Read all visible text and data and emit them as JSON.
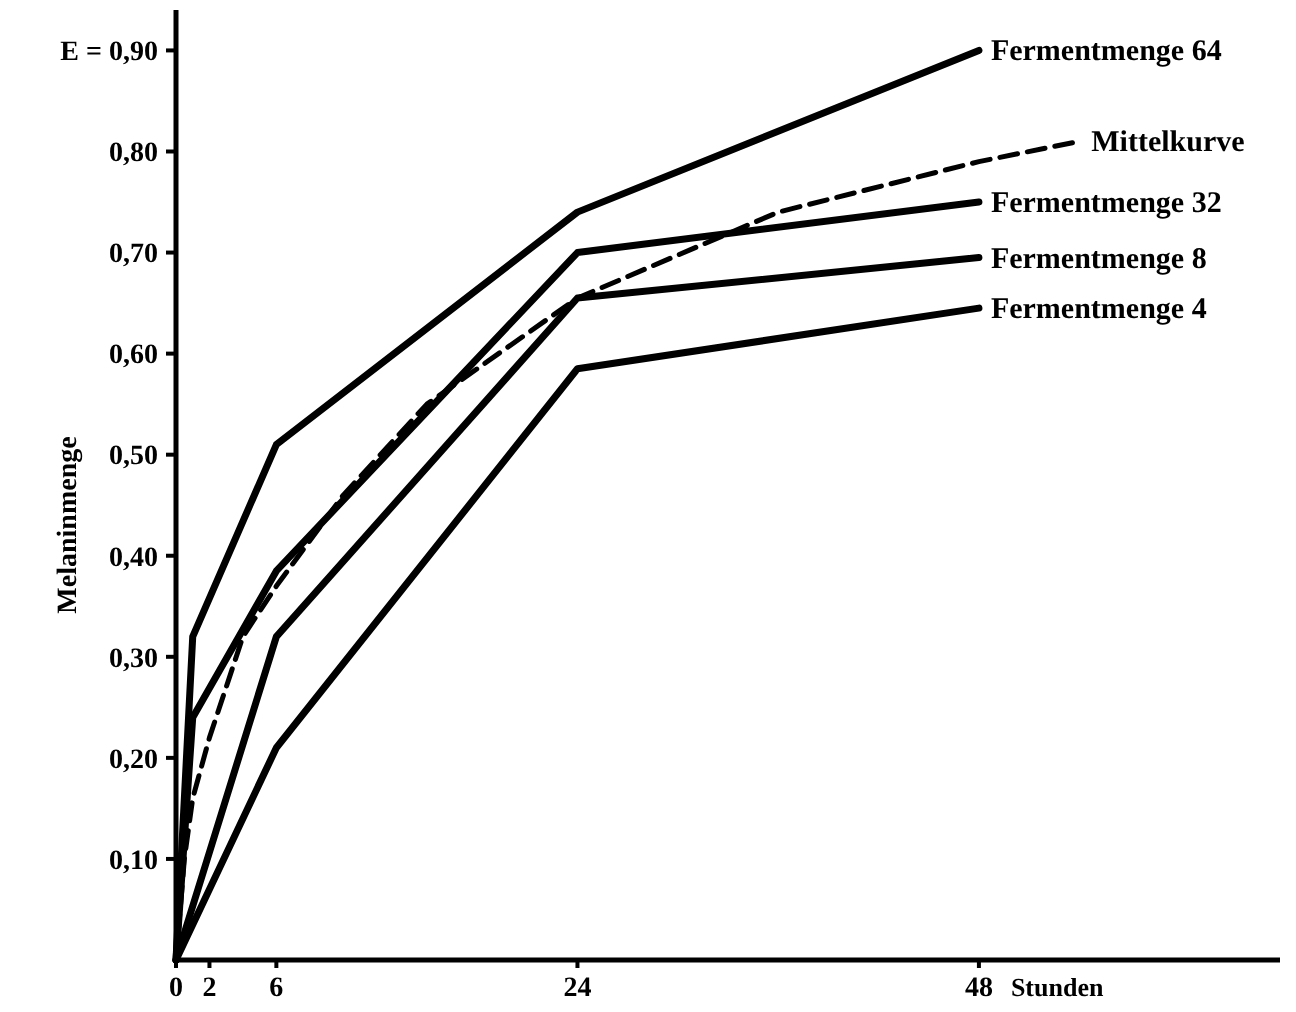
{
  "chart_data": {
    "type": "line",
    "ylabel": "Melaninmenge",
    "xlabel": "Stunden",
    "xlim": [
      0,
      66
    ],
    "xticks": [
      0,
      2,
      6,
      24,
      48
    ],
    "ylim": [
      0,
      0.94
    ],
    "yticks": [
      {
        "value": 0.1,
        "label": "0,10"
      },
      {
        "value": 0.2,
        "label": "0,20"
      },
      {
        "value": 0.3,
        "label": "0,30"
      },
      {
        "value": 0.4,
        "label": "0,40"
      },
      {
        "value": 0.5,
        "label": "0,50"
      },
      {
        "value": 0.6,
        "label": "0,60"
      },
      {
        "value": 0.7,
        "label": "0,70"
      },
      {
        "value": 0.8,
        "label": "0,80"
      },
      {
        "value": 0.9,
        "label": "E = 0,90"
      }
    ],
    "grid": false,
    "marker": "none",
    "series": [
      {
        "name": "Fermentmenge 64",
        "color": "#000000",
        "x": [
          0,
          1,
          6,
          24,
          48
        ],
        "values": [
          0,
          0.32,
          0.51,
          0.74,
          0.9
        ]
      },
      {
        "name": "Mittelkurve",
        "color": "#000000",
        "line_style": "dashed",
        "x": [
          0,
          0.5,
          1,
          2,
          4,
          6,
          10,
          15,
          24,
          36,
          48,
          54
        ],
        "values": [
          0,
          0.1,
          0.16,
          0.22,
          0.32,
          0.37,
          0.46,
          0.55,
          0.655,
          0.74,
          0.79,
          0.81
        ]
      },
      {
        "name": "Fermentmenge 32",
        "color": "#000000",
        "x": [
          0,
          1,
          6,
          24,
          48
        ],
        "values": [
          0,
          0.24,
          0.385,
          0.7,
          0.75
        ]
      },
      {
        "name": "Fermentmenge 8",
        "color": "#000000",
        "x": [
          0,
          6,
          24,
          48
        ],
        "values": [
          0,
          0.32,
          0.655,
          0.695
        ]
      },
      {
        "name": "Fermentmenge 4",
        "color": "#000000",
        "x": [
          0,
          6,
          24,
          48
        ],
        "values": [
          0,
          0.21,
          0.585,
          0.645
        ]
      }
    ]
  }
}
